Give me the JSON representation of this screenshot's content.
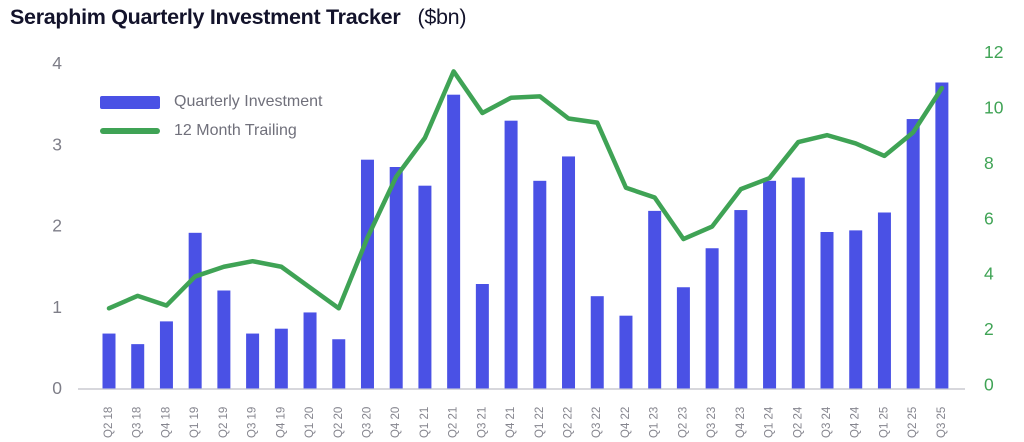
{
  "title": {
    "main": "Seraphim Quarterly Investment Tracker",
    "suffix": "($bn)"
  },
  "legend": {
    "items": [
      {
        "label": "Quarterly Investment",
        "type": "bar"
      },
      {
        "label": "12 Month Trailing",
        "type": "line"
      }
    ]
  },
  "colors": {
    "bar": "#4a51e5",
    "line": "#3fa355",
    "title_text": "#13132b",
    "axis_text_gray": "#7e7e88",
    "x_label_gray": "#85858e",
    "legend_text": "#70707b",
    "baseline": "#d7d7dc"
  },
  "chart_data": {
    "type": "combo",
    "title": "Seraphim Quarterly Investment Tracker ($bn)",
    "categories": [
      "Q2 18",
      "Q3 18",
      "Q4 18",
      "Q1 19",
      "Q2 19",
      "Q3 19",
      "Q4 19",
      "Q1 20",
      "Q2 20",
      "Q3 20",
      "Q4 20",
      "Q1 21",
      "Q2 21",
      "Q3 21",
      "Q4 21",
      "Q1 22",
      "Q2 22",
      "Q3 22",
      "Q4 22",
      "Q1 23",
      "Q2 23",
      "Q3 23",
      "Q4 23",
      "Q1 24",
      "Q2 24",
      "Q3 24",
      "Q4 24",
      "Q1 25",
      "Q2 25",
      "Q3 25"
    ],
    "series": [
      {
        "name": "Quarterly Investment",
        "type": "bar",
        "axis": "left",
        "color": "#4a51e5",
        "values": [
          0.67,
          0.54,
          0.82,
          1.91,
          1.2,
          0.67,
          0.73,
          0.93,
          0.6,
          2.81,
          2.72,
          2.49,
          3.61,
          1.28,
          3.29,
          2.55,
          2.85,
          1.13,
          0.89,
          2.18,
          1.24,
          1.72,
          2.19,
          2.55,
          2.59,
          1.92,
          1.94,
          2.16,
          3.31,
          3.76
        ]
      },
      {
        "name": "12 Month Trailing",
        "type": "line",
        "axis": "right",
        "color": "#3fa355",
        "values": [
          2.75,
          3.2,
          2.85,
          3.9,
          4.25,
          4.45,
          4.25,
          3.5,
          2.75,
          5.3,
          7.5,
          8.9,
          11.3,
          9.8,
          10.35,
          10.4,
          9.6,
          9.45,
          7.1,
          6.75,
          5.25,
          5.7,
          7.05,
          7.45,
          8.75,
          9.0,
          8.7,
          8.25,
          9.1,
          10.7
        ]
      }
    ],
    "left_axis": {
      "ticks": [
        0,
        1,
        2,
        3,
        4
      ],
      "range": [
        0,
        4
      ]
    },
    "right_axis": {
      "ticks": [
        0,
        2,
        4,
        6,
        8,
        10,
        12
      ],
      "range": [
        0,
        12
      ]
    },
    "grid": false,
    "legend_position": "top-left-inside",
    "x_labels_rotated": true
  }
}
